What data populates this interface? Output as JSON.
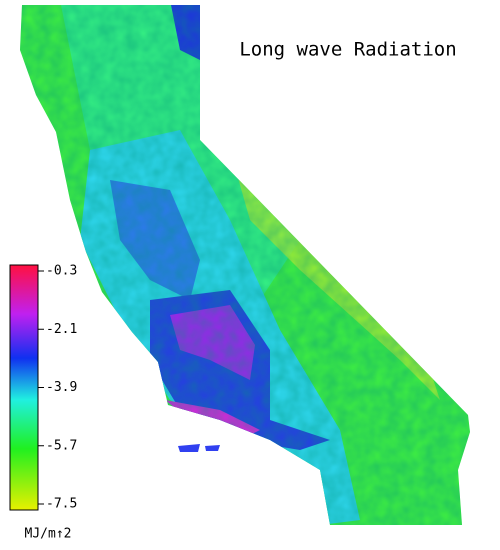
{
  "map": {
    "title": "Long wave Radiation",
    "colorbar": {
      "lim": [
        -7.5,
        -0.3
      ],
      "ticks": [
        -0.3,
        -2.1,
        -3.9,
        -5.7,
        -7.5
      ],
      "unit": "MJ/m↑2"
    }
  }
}
